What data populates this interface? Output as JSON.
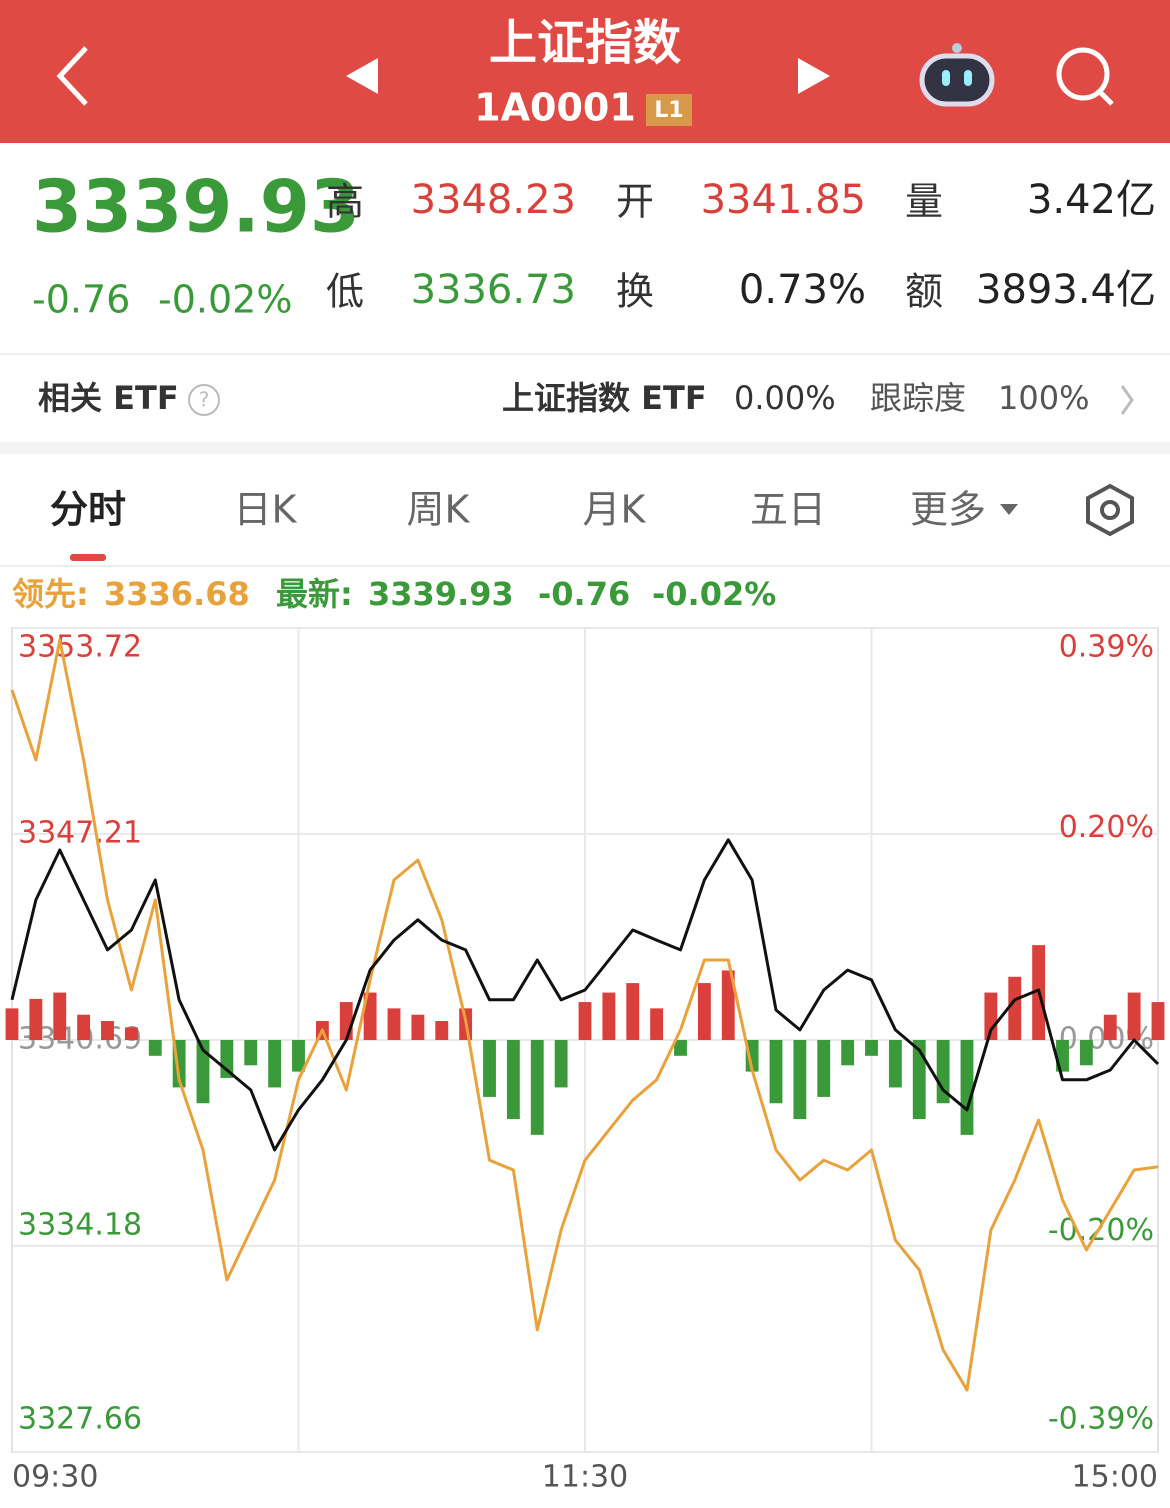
{
  "header": {
    "title": "上证指数",
    "code": "1A0001",
    "badge": "L1"
  },
  "quote": {
    "price": "3339.93",
    "change": "-0.76",
    "change_pct": "-0.02%",
    "fields": [
      {
        "label": "高",
        "value": "3348.23"
      },
      {
        "label": "开",
        "value": "3341.85"
      },
      {
        "label": "量",
        "value": "3.42亿"
      },
      {
        "label": "低",
        "value": "3336.73"
      },
      {
        "label": "换",
        "value": "0.73%"
      },
      {
        "label": "额",
        "value": "3893.4亿"
      }
    ]
  },
  "etf": {
    "label": "相关 ETF",
    "name": "上证指数 ETF",
    "change": "0.00%",
    "track_label": "跟踪度",
    "track": "100%"
  },
  "tabs": [
    "分时",
    "日K",
    "周K",
    "月K",
    "五日",
    "更多"
  ],
  "chart_data": {
    "type": "line",
    "x": [
      0,
      5,
      10,
      15,
      20,
      25,
      30,
      35,
      40,
      45,
      50,
      55,
      60,
      65,
      70,
      75,
      80,
      85,
      90,
      95,
      100,
      105,
      110,
      115,
      120,
      125,
      130,
      135,
      140,
      145,
      150,
      155,
      160,
      165,
      170,
      175,
      180,
      185,
      190,
      195,
      200,
      205,
      210,
      215,
      220,
      225,
      230,
      235,
      240
    ],
    "xlim": [
      0,
      240
    ],
    "xticks": [
      {
        "value": 0,
        "label": "09:30"
      },
      {
        "value": 120,
        "label": "11:30"
      },
      {
        "value": 240,
        "label": "15:00"
      }
    ],
    "xgrid": [
      60,
      120,
      180
    ],
    "ylim": [
      3327.66,
      3353.72
    ],
    "yticks": [
      3353.72,
      3347.21,
      3340.69,
      3334.18,
      3327.66
    ],
    "y2lim": [
      -0.39,
      0.39
    ],
    "y2ticks": [
      {
        "value": 0.39,
        "label": "0.39%"
      },
      {
        "value": 0.2,
        "label": "0.20%"
      },
      {
        "value": 0,
        "label": "0.00%"
      },
      {
        "value": -0.2,
        "label": "-0.20%"
      },
      {
        "value": -0.39,
        "label": "-0.39%"
      }
    ],
    "base": 3340.69,
    "up_color": "#d9403b",
    "down_color": "#3a9a3a",
    "grid": true,
    "series": [
      {
        "name": "领先:",
        "value_label": "3336.68",
        "color": "#e9a23b",
        "values": [
          3351.76,
          3349.55,
          3353.34,
          3349.55,
          3345.12,
          3342.27,
          3345.12,
          3339.43,
          3337.21,
          3333.1,
          3334.68,
          3336.26,
          3339.43,
          3341.01,
          3339.11,
          3342.59,
          3345.75,
          3346.38,
          3344.49,
          3341.32,
          3336.89,
          3336.58,
          3331.52,
          3334.68,
          3336.89,
          3337.84,
          3338.79,
          3339.43,
          3341.01,
          3343.22,
          3343.22,
          3339.74,
          3337.21,
          3336.26,
          3336.89,
          3336.58,
          3337.21,
          3334.36,
          3333.42,
          3330.89,
          3329.62,
          3334.68,
          3336.26,
          3338.16,
          3335.63,
          3334.05,
          3335.31,
          3336.58,
          3336.68
        ]
      },
      {
        "name": "最新:",
        "value_label": "3339.93",
        "color": "#111111",
        "values": [
          3341.96,
          3345.12,
          3346.7,
          3345.12,
          3343.54,
          3344.17,
          3345.75,
          3341.96,
          3340.37,
          3339.74,
          3339.11,
          3337.21,
          3338.48,
          3339.43,
          3340.69,
          3342.9,
          3343.85,
          3344.49,
          3343.85,
          3343.54,
          3341.96,
          3341.96,
          3343.22,
          3341.96,
          3342.27,
          3343.22,
          3344.17,
          3343.85,
          3343.54,
          3345.75,
          3347.02,
          3345.75,
          3341.64,
          3341.01,
          3342.27,
          3342.9,
          3342.59,
          3341.01,
          3340.37,
          3339.11,
          3338.48,
          3341.01,
          3341.96,
          3342.27,
          3339.43,
          3339.43,
          3339.74,
          3340.69,
          3339.93
        ]
      }
    ],
    "change_labels": [
      "-0.76",
      "-0.02%"
    ],
    "bars": [
      1.0,
      1.3,
      1.5,
      0.8,
      0.6,
      0.4,
      -0.5,
      -1.5,
      -2.0,
      -1.2,
      -0.8,
      -1.5,
      -1.0,
      0.6,
      1.2,
      1.5,
      1.0,
      0.8,
      0.6,
      1.0,
      -1.8,
      -2.5,
      -3.0,
      -1.5,
      1.2,
      1.5,
      1.8,
      1.0,
      -0.5,
      1.8,
      2.2,
      -1.0,
      -2.0,
      -2.5,
      -1.8,
      -0.8,
      -0.5,
      -1.5,
      -2.5,
      -2.0,
      -3.0,
      1.5,
      2.0,
      3.0,
      -1.0,
      -0.8,
      0.8,
      1.5,
      1.2
    ]
  }
}
